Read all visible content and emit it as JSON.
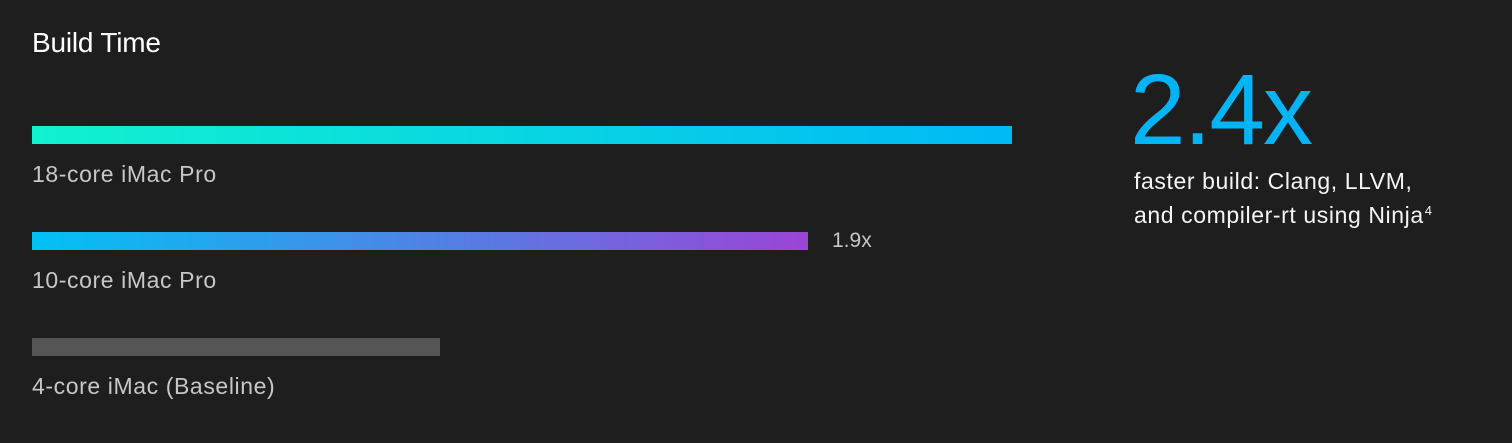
{
  "chart_data": {
    "type": "bar",
    "orientation": "horizontal",
    "title": "Build Time",
    "categories": [
      "18-core iMac Pro",
      "10-core iMac Pro",
      "4-core iMac (Baseline)"
    ],
    "values": [
      2.4,
      1.9,
      1.0
    ],
    "value_labels": [
      "",
      "1.9x",
      ""
    ],
    "bar_colors": [
      [
        "#11f2cf",
        "#00b9f5"
      ],
      [
        "#00c2f4",
        "#9b45d6"
      ],
      [
        "#555555",
        "#555555"
      ]
    ],
    "xlim": [
      0,
      2.4
    ],
    "grid": false,
    "legend": "none"
  },
  "headline": {
    "value": "2.4x",
    "caption_line1": "faster build: Clang, LLVM,",
    "caption_line2": "and compiler-rt using Ninja",
    "footnote": "4"
  }
}
